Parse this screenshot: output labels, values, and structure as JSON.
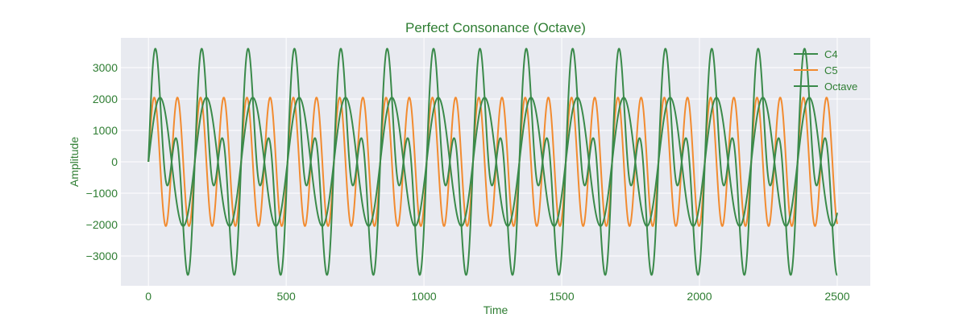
{
  "chart_data": {
    "type": "line",
    "title": "Perfect Consonance (Octave)",
    "xlabel": "Time",
    "ylabel": "Amplitude",
    "xlim": [
      -100,
      2620
    ],
    "ylim": [
      -3950,
      3950
    ],
    "x_ticks": [
      0,
      500,
      1000,
      1500,
      2000,
      2500
    ],
    "x_tick_labels": [
      "0",
      "500",
      "1000",
      "1500",
      "2000",
      "2500"
    ],
    "y_ticks": [
      -3000,
      -2000,
      -1000,
      0,
      1000,
      2000,
      3000
    ],
    "y_tick_labels": [
      "−3000",
      "−2000",
      "−1000",
      "0",
      "1000",
      "2000",
      "3000"
    ],
    "grid": true,
    "legend_position": "top-right",
    "x_range": [
      0,
      2500
    ],
    "series": [
      {
        "name": "C4",
        "color": "#3a8a4a",
        "function": "sine",
        "amplitude": 2048,
        "period": 168.3,
        "phase": 0
      },
      {
        "name": "C5",
        "color": "#f28b30",
        "function": "sine",
        "amplitude": 2048,
        "period": 84.15,
        "phase": 0
      },
      {
        "name": "Octave",
        "color": "#3a8a4a",
        "function": "sum",
        "of": [
          "C4",
          "C5"
        ]
      }
    ]
  },
  "colors": {
    "plot_background": "#e8eaf0",
    "grid": "#ffffff",
    "text": "#2e7d32"
  }
}
